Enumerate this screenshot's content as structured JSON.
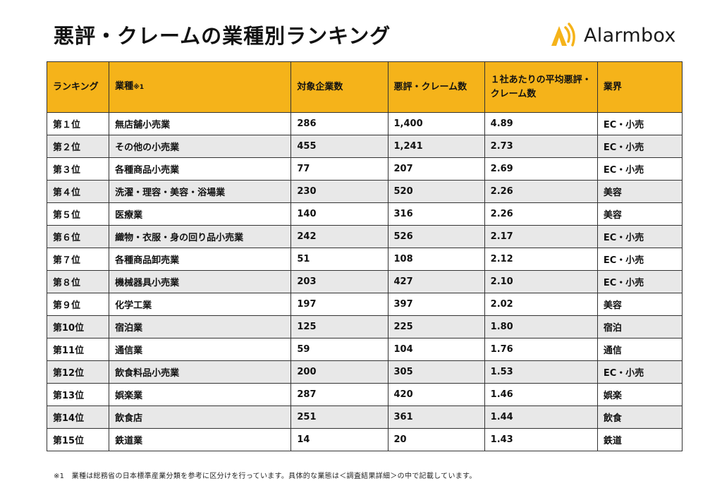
{
  "title": "悪評・クレームの業種別ランキング",
  "logo": {
    "text": "Alarmbox"
  },
  "colors": {
    "header_bg": "#f5b31a",
    "row_alt_bg": "#e8e8e8",
    "border": "#333333",
    "logo_accent": "#f5b31a"
  },
  "table": {
    "headers": [
      {
        "text": "ランキング"
      },
      {
        "text": "業種",
        "note": "※1"
      },
      {
        "text": "対象企業数"
      },
      {
        "text": "悪評・クレーム数"
      },
      {
        "text": "１社あたりの平均悪評・クレーム数"
      },
      {
        "text": "業界"
      }
    ],
    "rows": [
      [
        "第１位",
        "無店舗小売業",
        "286",
        "1,400",
        "4.89",
        "EC・小売"
      ],
      [
        "第２位",
        "その他の小売業",
        "455",
        "1,241",
        "2.73",
        "EC・小売"
      ],
      [
        "第３位",
        "各種商品小売業",
        "77",
        "207",
        "2.69",
        "EC・小売"
      ],
      [
        "第４位",
        "洗濯・理容・美容・浴場業",
        "230",
        "520",
        "2.26",
        "美容"
      ],
      [
        "第５位",
        "医療業",
        "140",
        "316",
        "2.26",
        "美容"
      ],
      [
        "第６位",
        "織物・衣服・身の回り品小売業",
        "242",
        "526",
        "2.17",
        "EC・小売"
      ],
      [
        "第７位",
        "各種商品卸売業",
        "51",
        "108",
        "2.12",
        "EC・小売"
      ],
      [
        "第８位",
        "機械器具小売業",
        "203",
        "427",
        "2.10",
        "EC・小売"
      ],
      [
        "第９位",
        "化学工業",
        "197",
        "397",
        "2.02",
        "美容"
      ],
      [
        "第10位",
        "宿泊業",
        "125",
        "225",
        "1.80",
        "宿泊"
      ],
      [
        "第11位",
        "通信業",
        "59",
        "104",
        "1.76",
        "通信"
      ],
      [
        "第12位",
        "飲食料品小売業",
        "200",
        "305",
        "1.53",
        "EC・小売"
      ],
      [
        "第13位",
        "娯楽業",
        "287",
        "420",
        "1.46",
        "娯楽"
      ],
      [
        "第14位",
        "飲食店",
        "251",
        "361",
        "1.44",
        "飲食"
      ],
      [
        "第15位",
        "鉄道業",
        "14",
        "20",
        "1.43",
        "鉄道"
      ]
    ]
  },
  "footnote": "※1　業種は総務省の日本標準産業分類を参考に区分けを行っています。具体的な業態は＜調査結果詳細＞の中で記載しています。"
}
